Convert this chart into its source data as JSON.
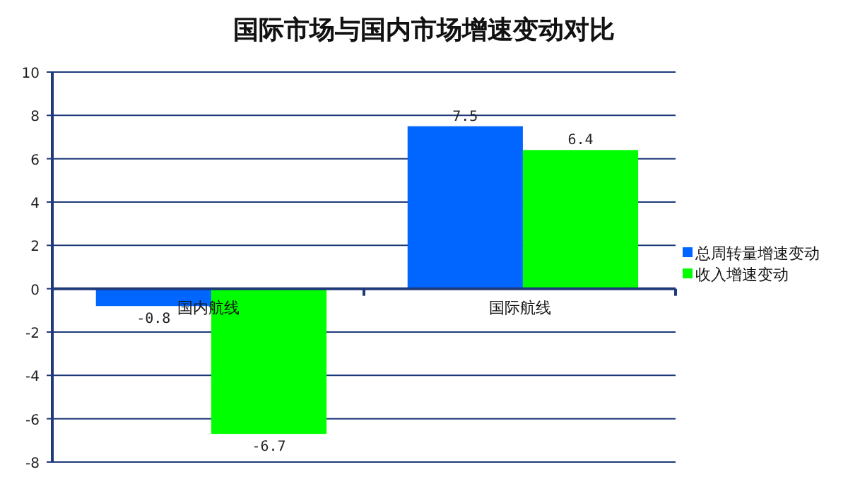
{
  "chart_data": {
    "type": "bar",
    "title": "国际市场与国内市场增速变动对比",
    "categories": [
      "国内航线",
      "国际航线"
    ],
    "series": [
      {
        "name": "总周转量增速变动",
        "color": "#0066ff",
        "values": [
          -0.8,
          7.5
        ]
      },
      {
        "name": "收入增速变动",
        "color": "#00ff00",
        "values": [
          -6.7,
          6.4
        ]
      }
    ],
    "ylim": [
      -8,
      10
    ],
    "yticks": [
      -8,
      -6,
      -4,
      -2,
      0,
      2,
      4,
      6,
      8,
      10
    ],
    "grid": "y",
    "legend": "right",
    "data_labels": true
  }
}
